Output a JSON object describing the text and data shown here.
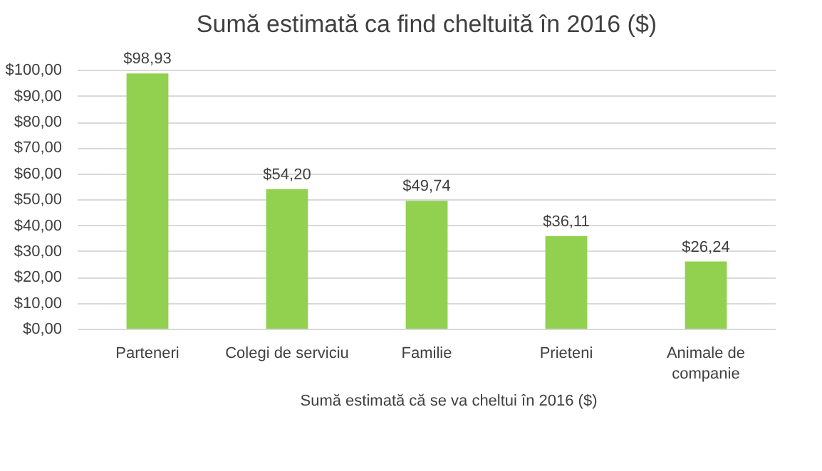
{
  "chart_data": {
    "type": "bar",
    "title": "Sumă estimată ca find cheltuită în 2016 ($)",
    "categories": [
      "Parteneri",
      "Colegi de serviciu",
      "Familie",
      "Prieteni",
      "Animale de companie"
    ],
    "series": [
      {
        "name": "Sumă estimată că se va cheltui în 2016 ($)",
        "color": "#92d050",
        "values": [
          98.93,
          54.2,
          49.74,
          36.11,
          26.24
        ],
        "value_labels": [
          "$98,93",
          "$54,20",
          "$49,74",
          "$36,11",
          "$26,24"
        ]
      }
    ],
    "ylim": [
      0,
      100
    ],
    "yticks": [
      {
        "value": 0,
        "label": "$0,00"
      },
      {
        "value": 10,
        "label": "$10,00"
      },
      {
        "value": 20,
        "label": "$20,00"
      },
      {
        "value": 30,
        "label": "$30,00"
      },
      {
        "value": 40,
        "label": "$40,00"
      },
      {
        "value": 50,
        "label": "$50,00"
      },
      {
        "value": 60,
        "label": "$60,00"
      },
      {
        "value": 70,
        "label": "$70,00"
      },
      {
        "value": 80,
        "label": "$80,00"
      },
      {
        "value": 90,
        "label": "$90,00"
      },
      {
        "value": 100,
        "label": "$100,00"
      }
    ],
    "grid": "y",
    "legend": "bottom"
  }
}
